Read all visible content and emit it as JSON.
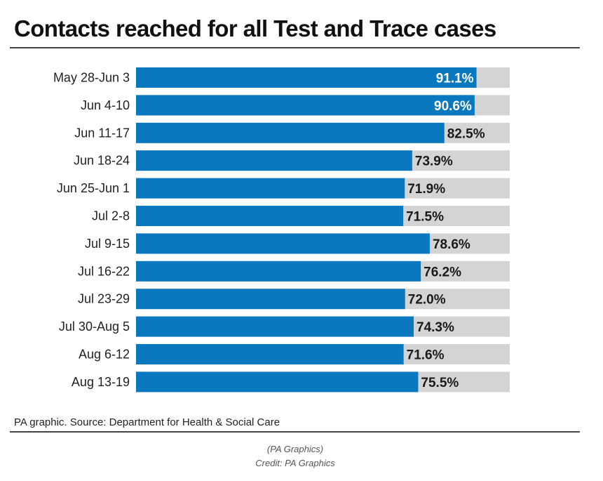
{
  "title": "Contacts reached for all Test and Trace cases",
  "source": "PA graphic. Source: Department for Health & Social Care",
  "caption_line1": "(PA Graphics)",
  "caption_line2": "Credit: PA Graphics",
  "colors": {
    "bar": "#0a78bf",
    "track": "#d4d4d4",
    "label_inside": "#ffffff",
    "label_outside": "#1a1a1a"
  },
  "chart_data": {
    "type": "bar",
    "orientation": "horizontal",
    "title": "Contacts reached for all Test and Trace cases",
    "categories": [
      "May 28-Jun 3",
      "Jun 4-10",
      "Jun 11-17",
      "Jun 18-24",
      "Jun 25-Jun 1",
      "Jul 2-8",
      "Jul 9-15",
      "Jul 16-22",
      "Jul 23-29",
      "Jul 30-Aug 5",
      "Aug 6-12",
      "Aug 13-19"
    ],
    "values": [
      91.1,
      90.6,
      82.5,
      73.9,
      71.9,
      71.5,
      78.6,
      76.2,
      72.0,
      74.3,
      71.6,
      75.5
    ],
    "value_labels": [
      "91.1%",
      "90.6%",
      "82.5%",
      "73.9%",
      "71.9%",
      "71.5%",
      "78.6%",
      "76.2%",
      "72.0%",
      "74.3%",
      "71.6%",
      "75.5%"
    ],
    "xlim": [
      0,
      100
    ],
    "grid": false,
    "legend": "none"
  }
}
